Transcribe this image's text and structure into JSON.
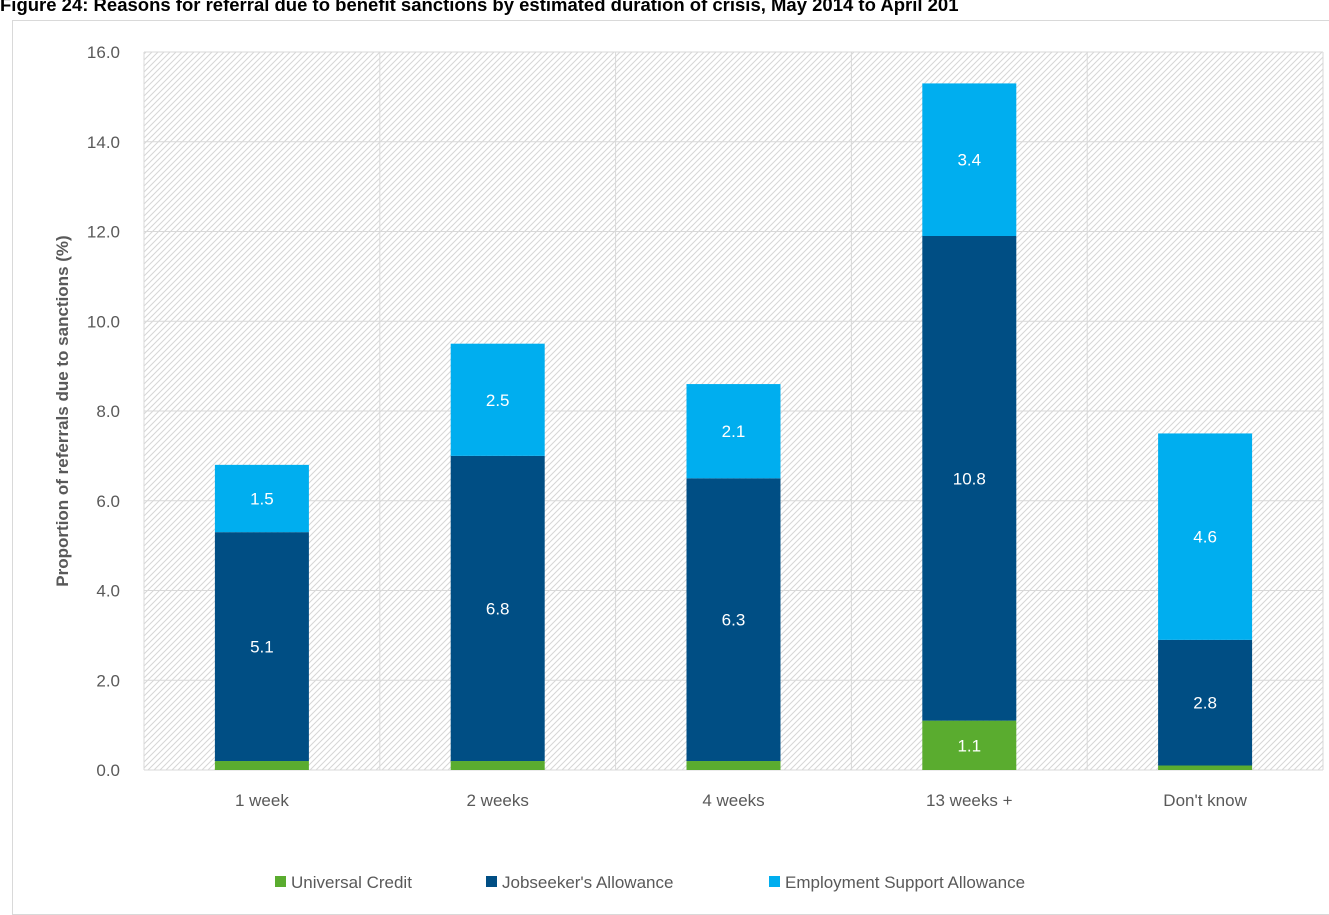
{
  "title": "Figure 24: Reasons for referral due to benefit sanctions by estimated duration of crisis, May 2014 to April 201",
  "chart_data": {
    "type": "bar",
    "stacked": true,
    "title": "Figure 24: Reasons for referral due to benefit sanctions by estimated duration of crisis, May 2014 to April 201",
    "xlabel": "",
    "ylabel": "Proportion of referrals due to sanctions (%)",
    "ylim": [
      0,
      16
    ],
    "yticks": [
      "0.0",
      "2.0",
      "4.0",
      "6.0",
      "8.0",
      "10.0",
      "12.0",
      "14.0",
      "16.0"
    ],
    "categories": [
      "1 week",
      "2 weeks",
      "4 weeks",
      "13 weeks +",
      "Don't know"
    ],
    "series": [
      {
        "name": "Universal Credit",
        "color": "#5aac2f",
        "values": [
          0.2,
          0.2,
          0.2,
          1.1,
          0.1
        ],
        "labels": [
          "0.2",
          "0.2",
          "0.2",
          "1.1",
          "0.1"
        ]
      },
      {
        "name": "Jobseeker's Allowance",
        "color": "#004e84",
        "values": [
          5.1,
          6.8,
          6.3,
          10.8,
          2.8
        ],
        "labels": [
          "5.1",
          "6.8",
          "6.3",
          "10.8",
          "2.8"
        ]
      },
      {
        "name": "Employment Support Allowance",
        "color": "#00aeef",
        "values": [
          1.5,
          2.5,
          2.1,
          3.4,
          4.6
        ],
        "labels": [
          "1.5",
          "2.5",
          "2.1",
          "3.4",
          "4.6"
        ]
      }
    ],
    "grid": true,
    "legend": "bottom"
  }
}
